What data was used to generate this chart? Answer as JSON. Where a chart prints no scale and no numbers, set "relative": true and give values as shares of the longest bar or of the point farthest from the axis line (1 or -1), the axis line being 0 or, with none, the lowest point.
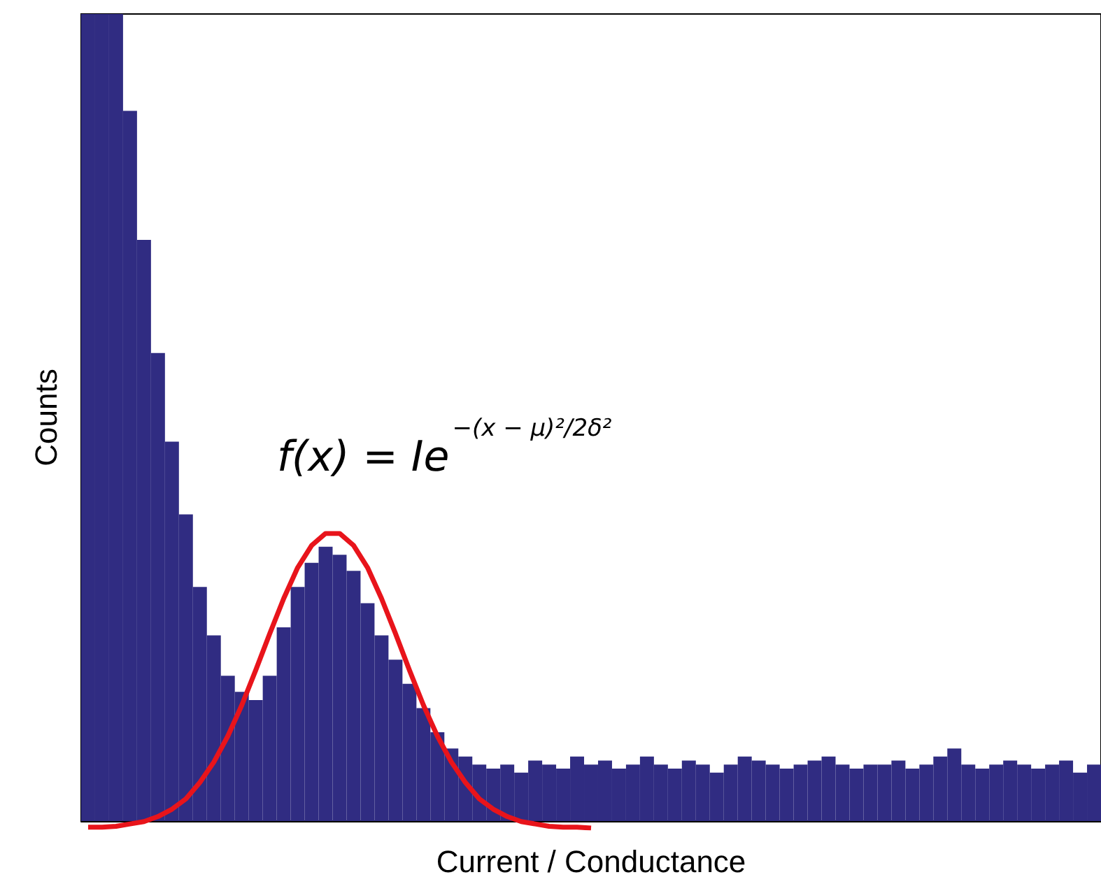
{
  "chart_data": [
    {
      "type": "bar",
      "relative": true,
      "xlabel": "Current / Conductance",
      "ylabel": "Counts",
      "color": "#302c82",
      "categories": [
        null,
        null,
        null,
        null,
        null,
        null,
        null,
        null,
        null,
        null,
        null,
        null,
        null,
        null,
        null,
        null,
        null,
        null,
        null,
        null,
        null,
        null,
        null,
        null,
        null,
        null,
        null,
        null,
        null,
        null,
        null,
        null,
        null,
        null,
        null,
        null,
        null,
        null,
        null,
        null,
        null,
        null,
        null,
        null,
        null,
        null,
        null,
        null,
        null,
        null,
        null,
        null,
        null,
        null,
        null,
        null,
        null,
        null,
        null,
        null,
        null,
        null,
        null,
        null,
        null,
        null,
        null,
        null,
        null,
        null,
        null,
        null,
        null
      ],
      "values": [
        1,
        1,
        1,
        0.88,
        0.72,
        0.58,
        0.47,
        0.38,
        0.29,
        0.23,
        0.18,
        0.16,
        0.15,
        0.18,
        0.24,
        0.29,
        0.32,
        0.34,
        0.33,
        0.31,
        0.27,
        0.23,
        0.2,
        0.17,
        0.14,
        0.11,
        0.09,
        0.08,
        0.07,
        0.065,
        0.07,
        0.06,
        0.075,
        0.07,
        0.065,
        0.08,
        0.07,
        0.075,
        0.065,
        0.07,
        0.08,
        0.07,
        0.065,
        0.075,
        0.07,
        0.06,
        0.07,
        0.08,
        0.075,
        0.07,
        0.065,
        0.07,
        0.075,
        0.08,
        0.07,
        0.065,
        0.07,
        0.07,
        0.075,
        0.065,
        0.07,
        0.08,
        0.09,
        0.07,
        0.065,
        0.07,
        0.075,
        0.07,
        0.065,
        0.07,
        0.075,
        0.06,
        0.07
      ]
    },
    {
      "type": "line",
      "relative": true,
      "color": "#e8141b",
      "annotations": [
        "f(x) = Ie$^{−(x − μ)²/2δ²}$"
      ],
      "categories": [
        null,
        null,
        null,
        null,
        null,
        null,
        null,
        null,
        null,
        null,
        null,
        null,
        null,
        null,
        null,
        null,
        null,
        null,
        null,
        null,
        null,
        null,
        null,
        null,
        null,
        null,
        null,
        null,
        null,
        null,
        null,
        null,
        null,
        null,
        null,
        null,
        null
      ],
      "values": [
        0.003,
        0.003,
        0.006,
        0.014,
        0.022,
        0.039,
        0.064,
        0.099,
        0.155,
        0.224,
        0.312,
        0.417,
        0.536,
        0.66,
        0.779,
        0.884,
        0.959,
        1,
        1,
        0.959,
        0.884,
        0.779,
        0.66,
        0.536,
        0.417,
        0.312,
        0.224,
        0.155,
        0.099,
        0.064,
        0.039,
        0.022,
        0.014,
        0.006,
        0.003,
        0.003,
        0
      ]
    }
  ]
}
